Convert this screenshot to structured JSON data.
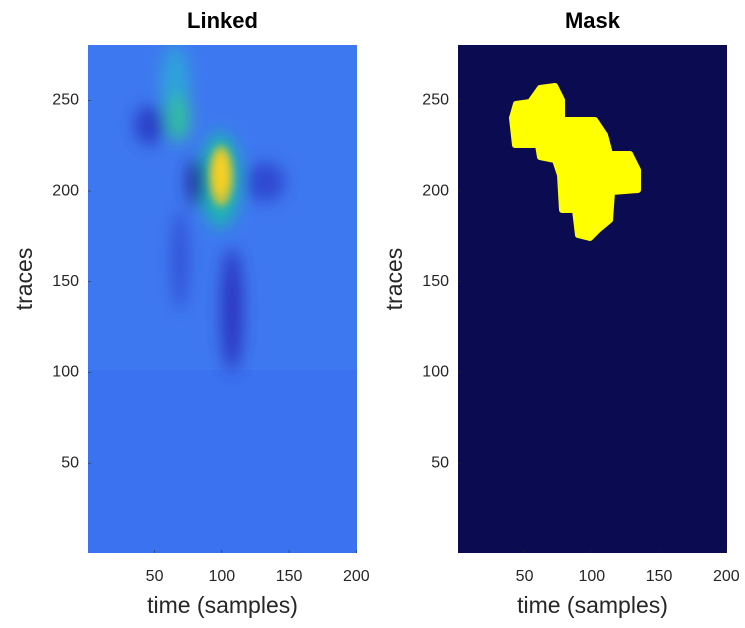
{
  "chart_data": [
    {
      "type": "image",
      "title": "Linked",
      "xlabel": "time (samples)",
      "ylabel": "traces",
      "xlim": [
        0.5,
        200.5
      ],
      "ylim": [
        0.5,
        280.5
      ],
      "xticks": [
        50,
        100,
        150,
        200
      ],
      "yticks": [
        50,
        100,
        150,
        200,
        250
      ]
    },
    {
      "type": "image",
      "title": "Mask",
      "xlabel": "time (samples)",
      "ylabel": "traces",
      "xlim": [
        0.5,
        200.5
      ],
      "ylim": [
        0.5,
        280.5
      ],
      "xticks": [
        50,
        100,
        150,
        200
      ],
      "yticks": [
        50,
        100,
        150,
        200,
        250
      ]
    }
  ]
}
